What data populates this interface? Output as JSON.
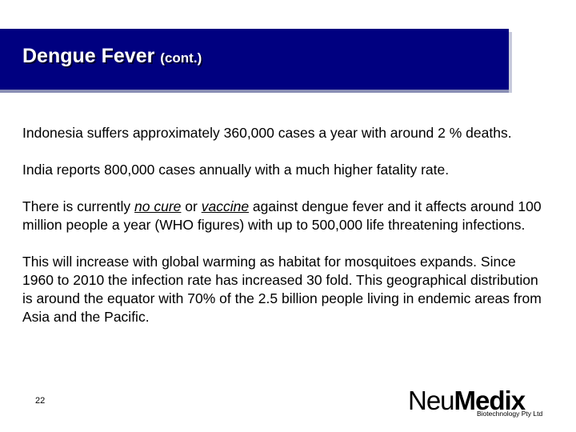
{
  "slide": {
    "title": "Dengue Fever",
    "title_suffix": "(cont.)",
    "page_number": "22",
    "colors": {
      "title_bar": "#000080",
      "title_text": "#ffffff"
    }
  },
  "body": {
    "p1": "Indonesia suffers approximately 360,000 cases a year with around 2 % deaths.",
    "p2": "India reports 800,000 cases annually with a much higher fatality rate.",
    "p3_pre": "There is currently ",
    "p3_no_cure": "no cure",
    "p3_or": " or ",
    "p3_vaccine": "vaccine",
    "p3_post": " against dengue fever and it affects around 100 million people a year (WHO figures) with up to 500,000 life threatening infections.",
    "p4": "This will increase with global warming as habitat for mosquitoes expands.  Since 1960 to 2010 the infection rate has increased 30 fold.  This geographical distribution is around the equator with 70% of the 2.5 billion people living in endemic areas from Asia and the Pacific."
  },
  "logo": {
    "neu": "Neu",
    "medix": "Medix",
    "tagline": "Biotechnology Pty Ltd"
  }
}
